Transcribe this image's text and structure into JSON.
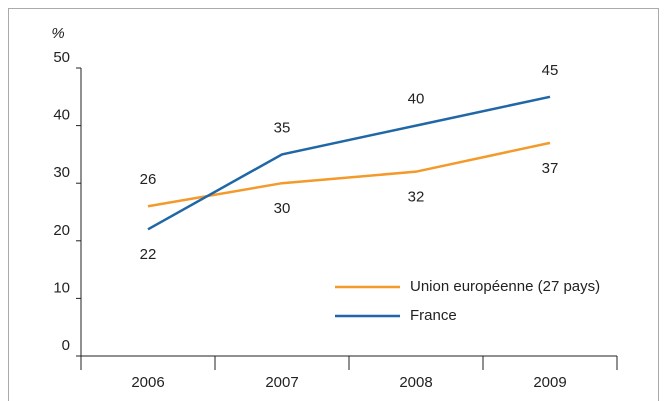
{
  "chart_data": {
    "type": "line",
    "y_axis_label": "%",
    "categories": [
      "2006",
      "2007",
      "2008",
      "2009"
    ],
    "series": [
      {
        "name": "Union européenne (27 pays)",
        "color": "#f39a2b",
        "values": [
          26,
          30,
          32,
          37
        ]
      },
      {
        "name": "France",
        "color": "#1f67a6",
        "values": [
          22,
          35,
          40,
          45
        ]
      }
    ],
    "ylim": [
      0,
      50
    ],
    "yticks": [
      0,
      10,
      20,
      30,
      40,
      50
    ],
    "grid": false,
    "legend": "lower right"
  }
}
